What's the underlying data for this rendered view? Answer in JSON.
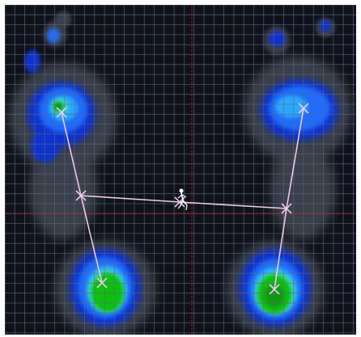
{
  "view": {
    "background_color": "#10121a",
    "grid_color": "#5a6a80",
    "center_line_color": "#c01818",
    "overlay_line_color": "#f0c8f0",
    "heat_colors": [
      "#3a4048",
      "#1030d0",
      "#1e6cff",
      "#2aa8ff",
      "#38e0b0",
      "#10c010",
      "#0a9a0a"
    ]
  },
  "feet": {
    "left": {
      "side": "left",
      "forefoot_marker": "x",
      "heel_marker": "x",
      "midpoint_marker": "x"
    },
    "right": {
      "side": "right",
      "forefoot_marker": "x",
      "heel_marker": "x",
      "midpoint_marker": "x"
    }
  },
  "center_marker": {
    "symbol": "x",
    "icon": "walking-figure-icon"
  }
}
